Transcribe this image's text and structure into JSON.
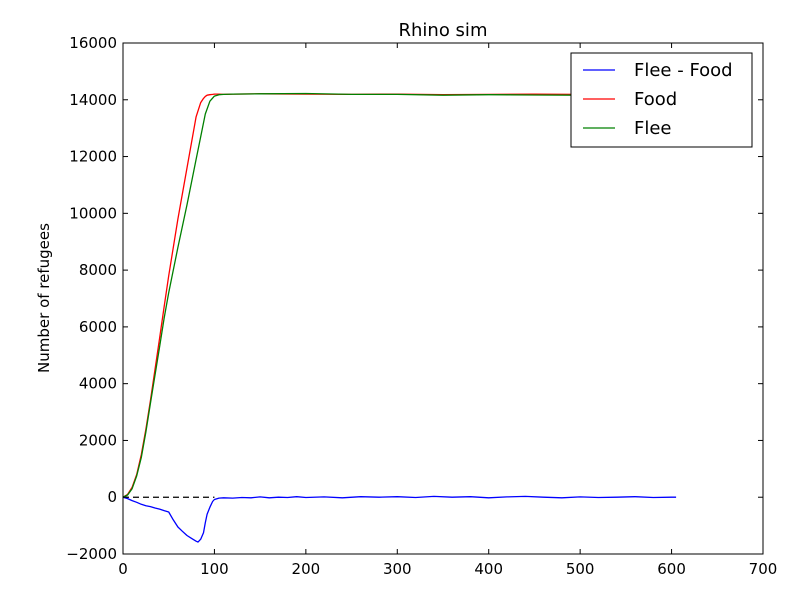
{
  "chart_data": {
    "type": "line",
    "title": "Rhino sim",
    "xlabel": "",
    "ylabel": "Number of refugees",
    "xlim": [
      0,
      700
    ],
    "ylim": [
      -2000,
      16000
    ],
    "xticks": [
      0,
      100,
      200,
      300,
      400,
      500,
      600,
      700
    ],
    "yticks": [
      -2000,
      0,
      2000,
      4000,
      6000,
      8000,
      10000,
      12000,
      14000,
      16000
    ],
    "ytick_labels": [
      "−2000",
      "0",
      "2000",
      "4000",
      "6000",
      "8000",
      "10000",
      "12000",
      "14000",
      "16000"
    ],
    "grid": false,
    "legend_position": "top-right",
    "reference_line": {
      "y": 0,
      "style": "dashed",
      "color": "#000000",
      "x_range": [
        0,
        100
      ]
    },
    "series": [
      {
        "name": "Flee - Food",
        "color": "#0000ff",
        "x": [
          0,
          5,
          10,
          15,
          20,
          25,
          30,
          35,
          40,
          45,
          50,
          55,
          60,
          65,
          70,
          75,
          80,
          82,
          85,
          88,
          90,
          92,
          95,
          98,
          100,
          105,
          110,
          120,
          130,
          140,
          150,
          160,
          170,
          180,
          190,
          200,
          220,
          240,
          260,
          280,
          300,
          320,
          340,
          360,
          380,
          400,
          420,
          440,
          460,
          480,
          500,
          520,
          540,
          560,
          580,
          600,
          605
        ],
        "y": [
          0,
          -50,
          -120,
          -180,
          -250,
          -300,
          -330,
          -380,
          -420,
          -470,
          -520,
          -800,
          -1050,
          -1200,
          -1350,
          -1450,
          -1550,
          -1580,
          -1480,
          -1250,
          -900,
          -600,
          -350,
          -150,
          -80,
          -30,
          -20,
          -30,
          -10,
          -20,
          10,
          -20,
          0,
          -10,
          20,
          -10,
          10,
          -20,
          20,
          0,
          20,
          -10,
          30,
          0,
          20,
          -20,
          10,
          30,
          0,
          -20,
          10,
          -10,
          0,
          20,
          -10,
          0,
          0
        ]
      },
      {
        "name": "Food",
        "color": "#ff0000",
        "x": [
          0,
          5,
          10,
          15,
          20,
          25,
          30,
          35,
          40,
          45,
          50,
          60,
          70,
          80,
          85,
          88,
          90,
          92,
          95,
          98,
          100,
          105,
          110,
          120,
          150,
          200,
          250,
          300,
          350,
          400,
          450,
          500,
          550,
          570
        ],
        "y": [
          0,
          100,
          350,
          800,
          1500,
          2400,
          3400,
          4500,
          5600,
          6700,
          7800,
          9800,
          11600,
          13400,
          13900,
          14050,
          14120,
          14160,
          14180,
          14190,
          14200,
          14200,
          14190,
          14200,
          14210,
          14200,
          14190,
          14200,
          14180,
          14190,
          14200,
          14190,
          14200,
          14190
        ]
      },
      {
        "name": "Flee",
        "color": "#008000",
        "x": [
          0,
          5,
          10,
          15,
          20,
          25,
          30,
          35,
          40,
          45,
          50,
          60,
          70,
          80,
          85,
          90,
          95,
          100,
          105,
          110,
          120,
          150,
          200,
          250,
          300,
          350,
          400,
          450,
          500,
          550,
          570
        ],
        "y": [
          0,
          80,
          300,
          750,
          1400,
          2300,
          3300,
          4300,
          5300,
          6300,
          7200,
          8800,
          10300,
          11900,
          12700,
          13500,
          13950,
          14130,
          14180,
          14190,
          14200,
          14210,
          14220,
          14190,
          14190,
          14160,
          14180,
          14170,
          14160,
          14170,
          14180
        ]
      }
    ]
  }
}
